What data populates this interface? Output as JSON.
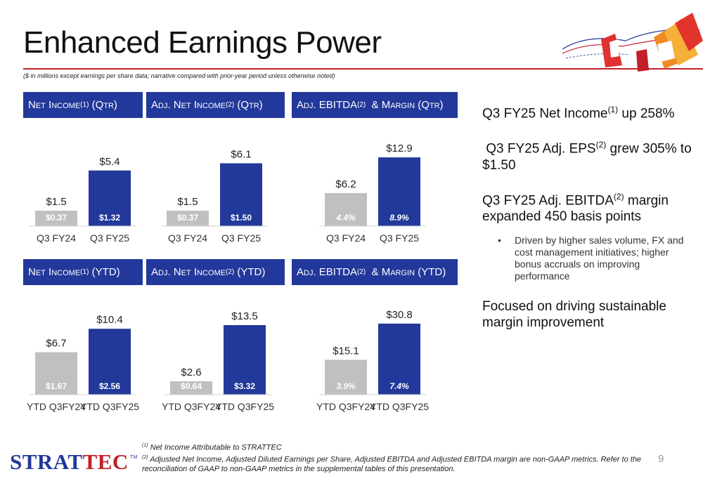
{
  "header": {
    "title": "Enhanced Earnings Power",
    "subtitle": "($ in millions except earnings per share data; narrative compared with prior-year period unless otherwise noted)"
  },
  "panels": {
    "ni_qtr": {
      "title_a": "Net Income",
      "sup": "(1)",
      "title_b": " (Qtr)"
    },
    "adjni_qtr": {
      "title_a": "Adj. Net Income",
      "sup": "(2)",
      "title_b": " (Qtr)"
    },
    "ebitda_qtr": {
      "title_a": "Adj. EBITDA",
      "sup": "(2)",
      "title_b": "  & Margin (Qtr)"
    },
    "ni_ytd": {
      "title_a": "Net Income",
      "sup": "(1)",
      "title_b": " (YTD)"
    },
    "adjni_ytd": {
      "title_a": "Adj. Net Income",
      "sup": "(2)",
      "title_b": " (YTD)"
    },
    "ebitda_ytd": {
      "title_a": "Adj. EBITDA",
      "sup": "(2)",
      "title_b": "  & Margin (YTD)"
    }
  },
  "chart_data": [
    {
      "id": "ni_qtr",
      "type": "bar",
      "categories": [
        "Q3 FY24",
        "Q3 FY25"
      ],
      "values": [
        1.5,
        5.4
      ],
      "value_labels": [
        "$1.5",
        "$5.4"
      ],
      "inner_labels": [
        "$0.37",
        "$1.32"
      ],
      "inner_italic": false
    },
    {
      "id": "adjni_qtr",
      "type": "bar",
      "categories": [
        "Q3 FY24",
        "Q3 FY25"
      ],
      "values": [
        1.5,
        6.1
      ],
      "value_labels": [
        "$1.5",
        "$6.1"
      ],
      "inner_labels": [
        "$0.37",
        "$1.50"
      ],
      "inner_italic": false
    },
    {
      "id": "ebitda_qtr",
      "type": "bar",
      "categories": [
        "Q3 FY24",
        "Q3 FY25"
      ],
      "values": [
        6.2,
        12.9
      ],
      "value_labels": [
        "$6.2",
        "$12.9"
      ],
      "inner_labels": [
        "4.4%",
        "8.9%"
      ],
      "inner_italic": true
    },
    {
      "id": "ni_ytd",
      "type": "bar",
      "categories": [
        "YTD Q3FY24",
        "YTD Q3FY25"
      ],
      "values": [
        6.7,
        10.4
      ],
      "value_labels": [
        "$6.7",
        "$10.4"
      ],
      "inner_labels": [
        "$1.67",
        "$2.56"
      ],
      "inner_italic": false
    },
    {
      "id": "adjni_ytd",
      "type": "bar",
      "categories": [
        "YTD Q3FY24",
        "YTD Q3FY25"
      ],
      "values": [
        2.6,
        13.5
      ],
      "value_labels": [
        "$2.6",
        "$13.5"
      ],
      "inner_labels": [
        "$0.64",
        "$3.32"
      ],
      "inner_italic": false
    },
    {
      "id": "ebitda_ytd",
      "type": "bar",
      "categories": [
        "YTD Q3FY24",
        "YTD Q3FY25"
      ],
      "values": [
        15.1,
        30.8
      ],
      "value_labels": [
        "$15.1",
        "$30.8"
      ],
      "inner_labels": [
        "3.9%",
        "7.4%"
      ],
      "inner_italic": true
    }
  ],
  "colors": {
    "prior": "#c0c0c0",
    "current": "#22389a",
    "header_bg": "#22389a",
    "accent_red": "#c21f2a"
  },
  "highlights": {
    "h1_a": "Q3 FY25 Net Income",
    "h1_sup": "(1)",
    "h1_b": " up 258%",
    "h2_a": " Q3 FY25 Adj. EPS",
    "h2_sup": "(2)",
    "h2_b": " grew 305% to $1.50",
    "h3_a": "Q3 FY25 Adj. EBITDA",
    "h3_sup": "(2)",
    "h3_b": " margin expanded 450 basis points",
    "sub_bullet": "Driven by higher sales volume, FX and cost management initiatives; higher bonus accruals on improving performance",
    "h4": "Focused on driving sustainable margin improvement"
  },
  "logo": {
    "strat": "STRAT",
    "tec": "TEC",
    "tm": "TM"
  },
  "footnotes": {
    "f1_sup": "(1)",
    "f1": " Net Income Attributable to STRATTEC",
    "f2_sup": "(2)",
    "f2": " Adjusted Net Income, Adjusted Diluted Earnings per Share, Adjusted EBITDA and Adjusted EBITDA margin are non-GAAP metrics.  Refer to the reconciliation of GAAP to non-GAAP metrics in the supplemental tables of this presentation."
  },
  "page_number": "9"
}
